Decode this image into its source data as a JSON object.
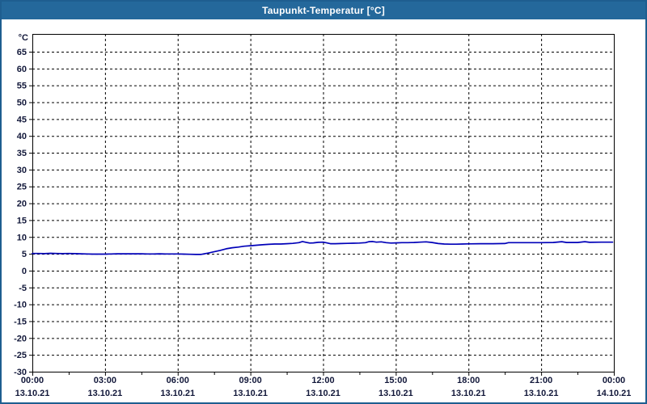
{
  "window": {
    "title": "Taupunkt-Temperatur [°C]",
    "title_bar_color": "#24689B",
    "border_color": "#1E5E90"
  },
  "chart_data": {
    "type": "line",
    "title": "Taupunkt-Temperatur [°C]",
    "xlabel": "",
    "ylabel": "°C",
    "y_unit_label": "°C",
    "ylim": [
      -30,
      65
    ],
    "y_tick_step": 5,
    "y_ticks": [
      65,
      60,
      55,
      50,
      45,
      40,
      35,
      30,
      25,
      20,
      15,
      10,
      5,
      0,
      -5,
      -10,
      -15,
      -20,
      -25,
      -30
    ],
    "x_range_hours": [
      0,
      24
    ],
    "x_major_tick_hours": 3,
    "x_minor_tick_hours": 1.5,
    "x_ticks": [
      {
        "time": "00:00",
        "date": "13.10.21"
      },
      {
        "time": "03:00",
        "date": "13.10.21"
      },
      {
        "time": "06:00",
        "date": "13.10.21"
      },
      {
        "time": "09:00",
        "date": "13.10.21"
      },
      {
        "time": "12:00",
        "date": "13.10.21"
      },
      {
        "time": "15:00",
        "date": "13.10.21"
      },
      {
        "time": "18:00",
        "date": "13.10.21"
      },
      {
        "time": "21:00",
        "date": "13.10.21"
      },
      {
        "time": "00:00",
        "date": "14.10.21"
      }
    ],
    "grid": "dashed",
    "legend": "none",
    "line_color": "#0000B8",
    "grid_color": "#000000",
    "axis_label_color": "#12183a",
    "series": [
      {
        "name": "Taupunkt-Temperatur",
        "points": [
          [
            0.0,
            5.1
          ],
          [
            0.25,
            5.1
          ],
          [
            0.5,
            5.05
          ],
          [
            0.75,
            5.15
          ],
          [
            1.0,
            5.1
          ],
          [
            1.25,
            5.05
          ],
          [
            1.5,
            5.1
          ],
          [
            1.75,
            5.05
          ],
          [
            2.0,
            5.0
          ],
          [
            2.25,
            4.95
          ],
          [
            2.5,
            4.9
          ],
          [
            2.75,
            4.9
          ],
          [
            3.0,
            4.9
          ],
          [
            3.25,
            4.95
          ],
          [
            3.5,
            5.0
          ],
          [
            3.75,
            5.0
          ],
          [
            4.0,
            5.0
          ],
          [
            4.25,
            5.0
          ],
          [
            4.5,
            5.0
          ],
          [
            4.75,
            4.95
          ],
          [
            5.0,
            4.95
          ],
          [
            5.25,
            5.0
          ],
          [
            5.5,
            4.95
          ],
          [
            5.75,
            4.95
          ],
          [
            6.0,
            4.95
          ],
          [
            6.25,
            4.9
          ],
          [
            6.5,
            4.85
          ],
          [
            6.75,
            4.8
          ],
          [
            6.95,
            4.8
          ],
          [
            7.1,
            5.0
          ],
          [
            7.3,
            5.3
          ],
          [
            7.5,
            5.6
          ],
          [
            7.75,
            6.0
          ],
          [
            8.0,
            6.5
          ],
          [
            8.25,
            6.8
          ],
          [
            8.5,
            7.0
          ],
          [
            8.75,
            7.25
          ],
          [
            9.0,
            7.4
          ],
          [
            9.25,
            7.55
          ],
          [
            9.5,
            7.7
          ],
          [
            9.75,
            7.8
          ],
          [
            10.0,
            7.9
          ],
          [
            10.25,
            7.9
          ],
          [
            10.5,
            8.0
          ],
          [
            10.75,
            8.1
          ],
          [
            11.0,
            8.3
          ],
          [
            11.15,
            8.65
          ],
          [
            11.3,
            8.4
          ],
          [
            11.45,
            8.2
          ],
          [
            11.6,
            8.25
          ],
          [
            11.8,
            8.4
          ],
          [
            12.0,
            8.45
          ],
          [
            12.15,
            8.25
          ],
          [
            12.3,
            8.0
          ],
          [
            12.5,
            8.0
          ],
          [
            12.75,
            8.05
          ],
          [
            13.0,
            8.1
          ],
          [
            13.25,
            8.15
          ],
          [
            13.5,
            8.2
          ],
          [
            13.75,
            8.3
          ],
          [
            13.9,
            8.6
          ],
          [
            14.05,
            8.65
          ],
          [
            14.2,
            8.45
          ],
          [
            14.4,
            8.55
          ],
          [
            14.6,
            8.3
          ],
          [
            14.8,
            8.2
          ],
          [
            15.0,
            8.25
          ],
          [
            15.25,
            8.3
          ],
          [
            15.5,
            8.3
          ],
          [
            15.75,
            8.35
          ],
          [
            16.0,
            8.45
          ],
          [
            16.25,
            8.55
          ],
          [
            16.5,
            8.35
          ],
          [
            16.75,
            8.05
          ],
          [
            17.0,
            7.9
          ],
          [
            17.25,
            7.85
          ],
          [
            17.5,
            7.85
          ],
          [
            17.75,
            7.9
          ],
          [
            18.0,
            7.95
          ],
          [
            18.5,
            8.0
          ],
          [
            19.0,
            8.0
          ],
          [
            19.5,
            8.05
          ],
          [
            19.65,
            8.3
          ],
          [
            20.0,
            8.3
          ],
          [
            20.5,
            8.3
          ],
          [
            21.0,
            8.3
          ],
          [
            21.5,
            8.35
          ],
          [
            21.85,
            8.6
          ],
          [
            22.05,
            8.35
          ],
          [
            22.5,
            8.35
          ],
          [
            22.8,
            8.6
          ],
          [
            23.0,
            8.4
          ],
          [
            23.5,
            8.45
          ],
          [
            23.95,
            8.45
          ]
        ]
      }
    ]
  }
}
